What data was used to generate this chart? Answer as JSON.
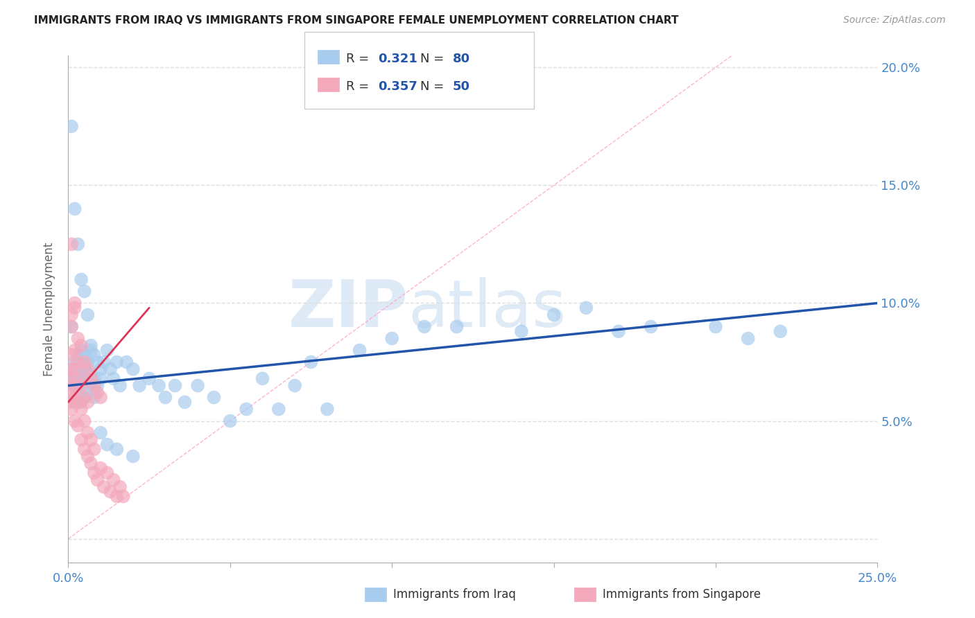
{
  "title": "IMMIGRANTS FROM IRAQ VS IMMIGRANTS FROM SINGAPORE FEMALE UNEMPLOYMENT CORRELATION CHART",
  "source": "Source: ZipAtlas.com",
  "ylabel": "Female Unemployment",
  "xlim": [
    0.0,
    0.25
  ],
  "ylim": [
    -0.01,
    0.205
  ],
  "yticks": [
    0.0,
    0.05,
    0.1,
    0.15,
    0.2
  ],
  "ytick_labels": [
    "",
    "5.0%",
    "10.0%",
    "15.0%",
    "20.0%"
  ],
  "xticks": [
    0.0,
    0.05,
    0.1,
    0.15,
    0.2,
    0.25
  ],
  "xtick_labels": [
    "0.0%",
    "",
    "",
    "",
    "",
    "25.0%"
  ],
  "watermark_zip": "ZIP",
  "watermark_atlas": "atlas",
  "iraq_color": "#A8CCEE",
  "singapore_color": "#F4A8BC",
  "trendline_iraq_color": "#2255AA",
  "trendline_singapore_color": "#DD3355",
  "legend_r_color": "#2255AA",
  "legend_n_color": "#DD3355",
  "iraq_scatter_x": [
    0.0005,
    0.001,
    0.001,
    0.0015,
    0.0015,
    0.002,
    0.002,
    0.002,
    0.003,
    0.003,
    0.003,
    0.003,
    0.004,
    0.004,
    0.004,
    0.004,
    0.005,
    0.005,
    0.005,
    0.005,
    0.006,
    0.006,
    0.006,
    0.007,
    0.007,
    0.007,
    0.008,
    0.008,
    0.009,
    0.009,
    0.01,
    0.01,
    0.011,
    0.012,
    0.013,
    0.014,
    0.015,
    0.016,
    0.018,
    0.02,
    0.022,
    0.025,
    0.028,
    0.03,
    0.033,
    0.036,
    0.04,
    0.045,
    0.05,
    0.055,
    0.06,
    0.065,
    0.07,
    0.075,
    0.08,
    0.09,
    0.1,
    0.11,
    0.12,
    0.14,
    0.15,
    0.16,
    0.17,
    0.18,
    0.2,
    0.21,
    0.22,
    0.001,
    0.002,
    0.003,
    0.004,
    0.005,
    0.006,
    0.007,
    0.008,
    0.01,
    0.012,
    0.015,
    0.02
  ],
  "iraq_scatter_y": [
    0.067,
    0.068,
    0.09,
    0.065,
    0.072,
    0.058,
    0.068,
    0.075,
    0.062,
    0.07,
    0.078,
    0.065,
    0.058,
    0.068,
    0.072,
    0.08,
    0.06,
    0.068,
    0.073,
    0.078,
    0.062,
    0.07,
    0.075,
    0.065,
    0.07,
    0.08,
    0.068,
    0.078,
    0.065,
    0.075,
    0.072,
    0.068,
    0.075,
    0.08,
    0.072,
    0.068,
    0.075,
    0.065,
    0.075,
    0.072,
    0.065,
    0.068,
    0.065,
    0.06,
    0.065,
    0.058,
    0.065,
    0.06,
    0.05,
    0.055,
    0.068,
    0.055,
    0.065,
    0.075,
    0.055,
    0.08,
    0.085,
    0.09,
    0.09,
    0.088,
    0.095,
    0.098,
    0.088,
    0.09,
    0.09,
    0.085,
    0.088,
    0.175,
    0.14,
    0.125,
    0.11,
    0.105,
    0.095,
    0.082,
    0.06,
    0.045,
    0.04,
    0.038,
    0.035
  ],
  "singapore_scatter_x": [
    0.0003,
    0.0005,
    0.0008,
    0.001,
    0.001,
    0.001,
    0.001,
    0.001,
    0.001,
    0.002,
    0.002,
    0.002,
    0.002,
    0.002,
    0.003,
    0.003,
    0.003,
    0.003,
    0.004,
    0.004,
    0.004,
    0.005,
    0.005,
    0.005,
    0.006,
    0.006,
    0.006,
    0.007,
    0.007,
    0.008,
    0.008,
    0.009,
    0.01,
    0.011,
    0.012,
    0.013,
    0.014,
    0.015,
    0.016,
    0.017,
    0.001,
    0.002,
    0.003,
    0.004,
    0.005,
    0.006,
    0.007,
    0.008,
    0.009,
    0.01
  ],
  "singapore_scatter_y": [
    0.068,
    0.072,
    0.058,
    0.065,
    0.078,
    0.09,
    0.095,
    0.062,
    0.055,
    0.05,
    0.06,
    0.072,
    0.08,
    0.1,
    0.048,
    0.058,
    0.068,
    0.075,
    0.042,
    0.055,
    0.065,
    0.038,
    0.05,
    0.06,
    0.035,
    0.045,
    0.058,
    0.032,
    0.042,
    0.028,
    0.038,
    0.025,
    0.03,
    0.022,
    0.028,
    0.02,
    0.025,
    0.018,
    0.022,
    0.018,
    0.125,
    0.098,
    0.085,
    0.082,
    0.075,
    0.072,
    0.068,
    0.065,
    0.062,
    0.06
  ],
  "iraq_trend_x": [
    0.0,
    0.25
  ],
  "iraq_trend_y": [
    0.065,
    0.1
  ],
  "singapore_trend_x": [
    0.0,
    0.025
  ],
  "singapore_trend_y": [
    0.058,
    0.098
  ],
  "diag_line_x": [
    0.0,
    0.205
  ],
  "diag_line_y": [
    0.0,
    0.205
  ],
  "background_color": "#FFFFFF",
  "grid_color": "#DDDDDD",
  "axis_label_color": "#4488CC",
  "right_axis_color": "#4488CC"
}
